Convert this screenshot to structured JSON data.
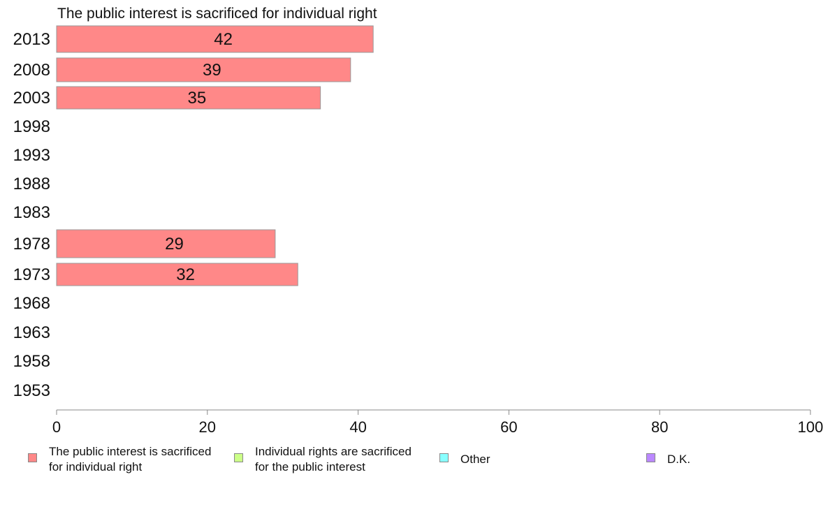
{
  "chart_data": {
    "type": "bar",
    "orientation": "horizontal",
    "title": "The public interest is sacrificed for individual right",
    "categories": [
      "2013",
      "2008",
      "2003",
      "1998",
      "1993",
      "1988",
      "1983",
      "1978",
      "1973",
      "1968",
      "1963",
      "1958",
      "1953"
    ],
    "series": [
      {
        "name": "The public interest is sacrificed for individual right",
        "color": "#ff8888",
        "values": [
          42,
          39,
          35,
          null,
          null,
          null,
          null,
          29,
          32,
          null,
          null,
          null,
          null
        ]
      }
    ],
    "xlim": [
      0,
      100
    ],
    "xticks": [
      "0",
      "20",
      "40",
      "60",
      "80",
      "100"
    ],
    "grid": false,
    "legend_position": "bottom"
  },
  "legend": {
    "items": [
      {
        "label": "The public interest is sacrificed\nfor individual right",
        "color": "#ff8888"
      },
      {
        "label": "Individual rights are sacrificed\nfor the public interest",
        "color": "#ccff88"
      },
      {
        "label": "Other",
        "color": "#88ffff"
      },
      {
        "label": "D.K.",
        "color": "#bb88ff"
      }
    ]
  }
}
